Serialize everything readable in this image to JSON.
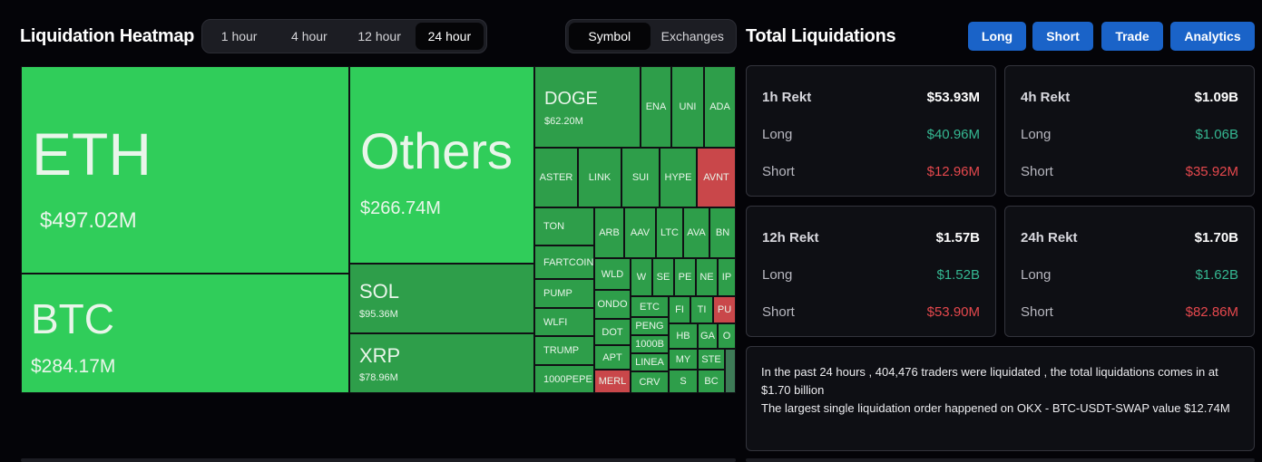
{
  "heatmap": {
    "title": "Liquidation Heatmap",
    "time_options": [
      "1 hour",
      "4 hour",
      "12 hour",
      "24 hour"
    ],
    "selected_time": "24 hour",
    "view_options": [
      "Symbol",
      "Exchanges"
    ],
    "selected_view": "Symbol",
    "tiles": {
      "eth": {
        "symbol": "ETH",
        "value": "$497.02M"
      },
      "btc": {
        "symbol": "BTC",
        "value": "$284.17M"
      },
      "others": {
        "symbol": "Others",
        "value": "$266.74M"
      },
      "sol": {
        "symbol": "SOL",
        "value": "$95.36M"
      },
      "xrp": {
        "symbol": "XRP",
        "value": "$78.96M"
      },
      "doge": {
        "symbol": "DOGE",
        "value": "$62.20M"
      },
      "small": {
        "ena": "ENA",
        "uni": "UNI",
        "ada": "ADA",
        "aster": "ASTER",
        "link": "LINK",
        "sui": "SUI",
        "hype": "HYPE",
        "avnt": "AVNT",
        "ton": "TON",
        "fartcoin": "FARTCOIN",
        "pump": "PUMP",
        "wlfi": "WLFI",
        "trump": "TRUMP",
        "pepe": "1000PEPE",
        "arb": "ARB",
        "aav": "AAV",
        "ltc": "LTC",
        "ava": "AVA",
        "bn": "BN",
        "wld": "WLD",
        "w": "W",
        "se": "SE",
        "pe": "PE",
        "ne": "NE",
        "ip": "IP",
        "ondo": "ONDO",
        "etc": "ETC",
        "fi": "FI",
        "ti": "TI",
        "pu": "PU",
        "dot": "DOT",
        "peng": "PENG",
        "hb": "HB",
        "ga": "GA",
        "o": "O",
        "apt": "APT",
        "k1000": "1000B",
        "my": "MY",
        "ste": "STE",
        "merl": "MERL",
        "linea": "LINEA",
        "crv": "CRV",
        "s": "S",
        "bc": "BC"
      }
    }
  },
  "total": {
    "title": "Total Liquidations",
    "buttons": {
      "long": "Long",
      "short": "Short",
      "trade": "Trade",
      "analytics": "Analytics"
    },
    "cards": [
      {
        "period": "1h Rekt",
        "total": "$53.93M",
        "long_label": "Long",
        "long": "$40.96M",
        "short_label": "Short",
        "short": "$12.96M"
      },
      {
        "period": "4h Rekt",
        "total": "$1.09B",
        "long_label": "Long",
        "long": "$1.06B",
        "short_label": "Short",
        "short": "$35.92M"
      },
      {
        "period": "12h Rekt",
        "total": "$1.57B",
        "long_label": "Long",
        "long": "$1.52B",
        "short_label": "Short",
        "short": "$53.90M"
      },
      {
        "period": "24h Rekt",
        "total": "$1.70B",
        "long_label": "Long",
        "long": "$1.62B",
        "short_label": "Short",
        "short": "$82.86M"
      }
    ],
    "summary_line1": "In the past 24 hours , 404,476 traders were liquidated , the total liquidations comes in at $1.70 billion",
    "summary_line2": "The largest single liquidation order happened on OKX - BTC-USDT-SWAP value $12.74M"
  },
  "colors": {
    "accent": "#1a63c8",
    "long": "#35b892",
    "short": "#e5484d",
    "heat_green": "#30cd5a"
  }
}
